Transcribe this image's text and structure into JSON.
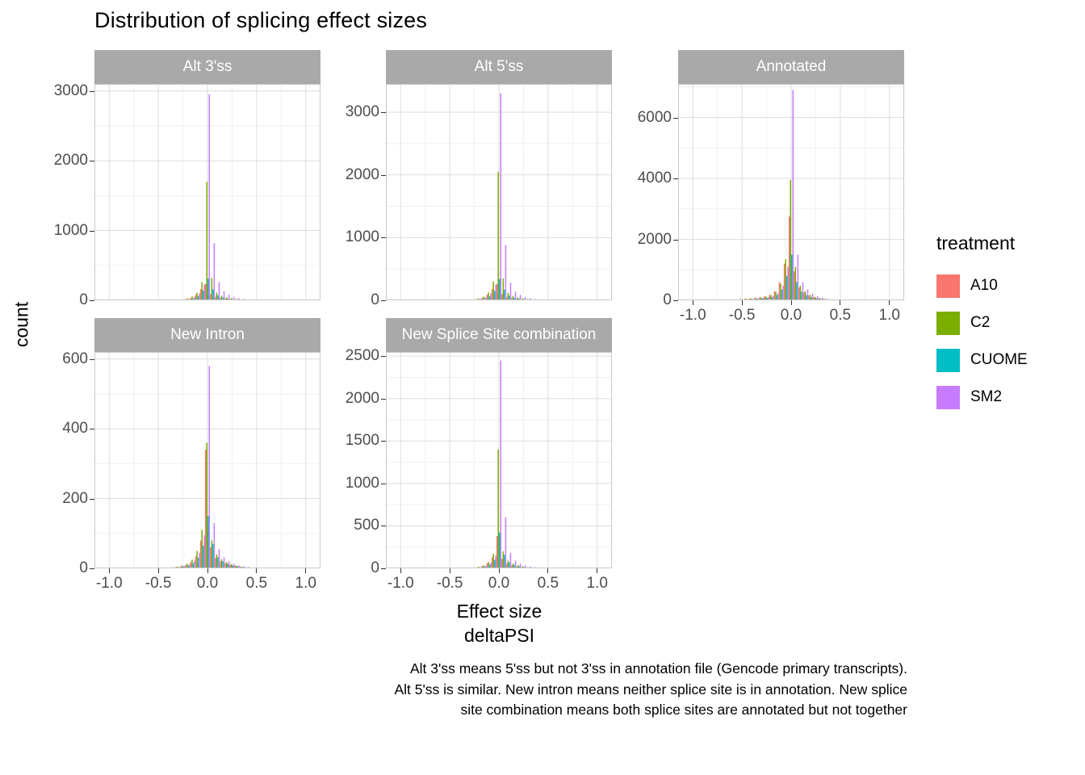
{
  "chart_data": {
    "type": "bar",
    "subtype": "dodged-histogram-facets",
    "title": "Distribution of splicing effect sizes",
    "xlabel": "Effect size\ndeltaPSI",
    "ylabel": "count",
    "legend_title": "treatment",
    "legend_position": "right",
    "grid": true,
    "caption": "Alt 3'ss means 5'ss but not 3'ss in annotation file (Gencode primary transcripts). Alt 5'ss is similar. New intron means neither splice site is in annotation. New splice site combination means both splice sites are annotated but not together",
    "treatments": [
      {
        "name": "A10",
        "color": "#F8766D"
      },
      {
        "name": "C2",
        "color": "#7CAE00"
      },
      {
        "name": "CUOME",
        "color": "#00BFC4"
      },
      {
        "name": "SM2",
        "color": "#C77CFF"
      }
    ],
    "xlim": [
      -1.15,
      1.15
    ],
    "x_ticks": [
      -1.0,
      -0.5,
      0.0,
      0.5,
      1.0
    ],
    "bin_width": 0.05,
    "facets": [
      {
        "label": "Alt 3'ss",
        "ylim": 3100,
        "y_ticks": [
          0,
          1000,
          2000,
          3000
        ],
        "bins": [
          -0.5,
          -0.45,
          -0.4,
          -0.35,
          -0.3,
          -0.25,
          -0.2,
          -0.15,
          -0.1,
          -0.05,
          0.0,
          0.05,
          0.1,
          0.15,
          0.2,
          0.25,
          0.3,
          0.35,
          0.4,
          0.45,
          0.5,
          0.55,
          0.6,
          0.65
        ],
        "counts": [
          [
            1,
            2,
            3,
            4,
            6,
            10,
            18,
            35,
            80,
            160,
            230,
            90,
            50,
            35,
            25,
            18,
            12,
            8,
            5,
            3,
            2,
            1,
            1,
            0
          ],
          [
            2,
            3,
            4,
            6,
            10,
            16,
            28,
            55,
            110,
            260,
            1700,
            320,
            110,
            65,
            45,
            30,
            20,
            12,
            8,
            5,
            3,
            2,
            1,
            1
          ],
          [
            1,
            1,
            2,
            3,
            5,
            8,
            14,
            28,
            60,
            140,
            310,
            160,
            70,
            40,
            25,
            15,
            10,
            6,
            4,
            2,
            1,
            1,
            0,
            0
          ],
          [
            2,
            3,
            4,
            6,
            9,
            15,
            25,
            50,
            100,
            230,
            2950,
            820,
            260,
            130,
            80,
            50,
            32,
            20,
            12,
            8,
            5,
            3,
            2,
            1
          ]
        ]
      },
      {
        "label": "Alt 5'ss",
        "ylim": 3450,
        "y_ticks": [
          0,
          1000,
          2000,
          3000
        ],
        "bins": [
          -0.5,
          -0.45,
          -0.4,
          -0.35,
          -0.3,
          -0.25,
          -0.2,
          -0.15,
          -0.1,
          -0.05,
          0.0,
          0.05,
          0.1,
          0.15,
          0.2,
          0.25,
          0.3,
          0.35,
          0.4,
          0.45,
          0.5,
          0.55,
          0.6,
          0.65
        ],
        "counts": [
          [
            1,
            2,
            3,
            4,
            6,
            10,
            20,
            40,
            90,
            180,
            260,
            100,
            55,
            38,
            26,
            18,
            12,
            8,
            5,
            3,
            2,
            1,
            1,
            0
          ],
          [
            2,
            3,
            4,
            6,
            10,
            18,
            30,
            60,
            130,
            300,
            2050,
            350,
            120,
            70,
            48,
            32,
            20,
            13,
            8,
            5,
            3,
            2,
            1,
            1
          ],
          [
            1,
            1,
            2,
            3,
            5,
            8,
            15,
            30,
            65,
            150,
            340,
            170,
            75,
            42,
            26,
            16,
            10,
            6,
            4,
            2,
            1,
            1,
            0,
            0
          ],
          [
            2,
            3,
            4,
            6,
            10,
            16,
            28,
            55,
            110,
            250,
            3300,
            880,
            280,
            140,
            85,
            52,
            34,
            21,
            13,
            8,
            5,
            3,
            2,
            1
          ]
        ]
      },
      {
        "label": "Annotated",
        "ylim": 7100,
        "y_ticks": [
          0,
          2000,
          4000,
          6000
        ],
        "bins": [
          -1.0,
          -0.9,
          -0.8,
          -0.7,
          -0.6,
          -0.5,
          -0.45,
          -0.4,
          -0.35,
          -0.3,
          -0.25,
          -0.2,
          -0.15,
          -0.1,
          -0.05,
          0.0,
          0.05,
          0.1,
          0.15,
          0.2,
          0.25,
          0.3,
          0.35,
          0.4
        ],
        "counts": [
          [
            25,
            20,
            22,
            25,
            30,
            45,
            55,
            65,
            80,
            100,
            130,
            180,
            300,
            600,
            1200,
            2750,
            950,
            420,
            260,
            160,
            100,
            60,
            40,
            25
          ],
          [
            20,
            18,
            20,
            22,
            28,
            40,
            50,
            60,
            75,
            95,
            125,
            170,
            280,
            550,
            1350,
            3950,
            1100,
            480,
            300,
            180,
            110,
            70,
            45,
            28
          ],
          [
            10,
            8,
            10,
            12,
            15,
            22,
            28,
            35,
            45,
            60,
            80,
            110,
            180,
            350,
            800,
            1500,
            600,
            280,
            170,
            100,
            60,
            38,
            24,
            15
          ],
          [
            15,
            12,
            14,
            16,
            20,
            30,
            38,
            48,
            60,
            80,
            105,
            145,
            240,
            480,
            1100,
            6900,
            1500,
            600,
            360,
            220,
            135,
            85,
            55,
            35
          ]
        ]
      },
      {
        "label": "New Intron",
        "ylim": 620,
        "y_ticks": [
          0,
          200,
          400,
          600
        ],
        "bins": [
          -0.5,
          -0.45,
          -0.4,
          -0.35,
          -0.3,
          -0.25,
          -0.2,
          -0.15,
          -0.1,
          -0.05,
          0.0,
          0.05,
          0.1,
          0.15,
          0.2,
          0.25,
          0.3,
          0.35,
          0.4,
          0.45,
          0.5,
          0.55,
          0.6,
          0.65
        ],
        "counts": [
          [
            1,
            1,
            2,
            3,
            4,
            6,
            10,
            18,
            35,
            80,
            340,
            60,
            30,
            20,
            14,
            10,
            7,
            4,
            3,
            2,
            1,
            1,
            0,
            0
          ],
          [
            1,
            2,
            2,
            3,
            5,
            8,
            13,
            25,
            50,
            110,
            360,
            80,
            40,
            26,
            18,
            12,
            8,
            5,
            3,
            2,
            1,
            1,
            1,
            0
          ],
          [
            0,
            1,
            1,
            2,
            3,
            5,
            8,
            15,
            30,
            65,
            150,
            70,
            32,
            20,
            13,
            8,
            5,
            3,
            2,
            1,
            1,
            0,
            0,
            0
          ],
          [
            1,
            1,
            2,
            3,
            4,
            7,
            12,
            22,
            45,
            95,
            580,
            130,
            55,
            32,
            20,
            13,
            9,
            6,
            4,
            2,
            1,
            1,
            1,
            0
          ]
        ]
      },
      {
        "label": "New Splice Site combination",
        "ylim": 2550,
        "y_ticks": [
          0,
          500,
          1000,
          1500,
          2000,
          2500
        ],
        "bins": [
          -0.5,
          -0.45,
          -0.4,
          -0.35,
          -0.3,
          -0.25,
          -0.2,
          -0.15,
          -0.1,
          -0.05,
          0.0,
          0.05,
          0.1,
          0.15,
          0.2,
          0.25,
          0.3,
          0.35,
          0.4,
          0.45,
          0.5,
          0.55,
          0.6,
          0.65
        ],
        "counts": [
          [
            1,
            2,
            2,
            3,
            5,
            8,
            14,
            28,
            60,
            130,
            380,
            110,
            55,
            35,
            22,
            15,
            10,
            6,
            4,
            2,
            1,
            1,
            0,
            0
          ],
          [
            1,
            2,
            3,
            4,
            6,
            10,
            18,
            35,
            75,
            170,
            1400,
            200,
            90,
            55,
            35,
            22,
            14,
            9,
            5,
            3,
            2,
            1,
            1,
            0
          ],
          [
            1,
            1,
            2,
            2,
            4,
            6,
            11,
            22,
            45,
            100,
            420,
            160,
            70,
            40,
            25,
            15,
            10,
            6,
            3,
            2,
            1,
            1,
            0,
            0
          ],
          [
            1,
            2,
            2,
            3,
            5,
            8,
            15,
            30,
            65,
            150,
            2450,
            600,
            180,
            90,
            55,
            34,
            21,
            13,
            8,
            5,
            3,
            2,
            1,
            1
          ]
        ]
      }
    ],
    "style": {
      "strip_bg": "#A9A9A9",
      "strip_text": "#FFFFFF",
      "panel_bg": "#FFFFFF",
      "grid_major": "#DDDDDD",
      "grid_minor": "#F0F0F0",
      "panel_border": "#C9C9C9",
      "axis_text": "#4D4D4D"
    }
  }
}
